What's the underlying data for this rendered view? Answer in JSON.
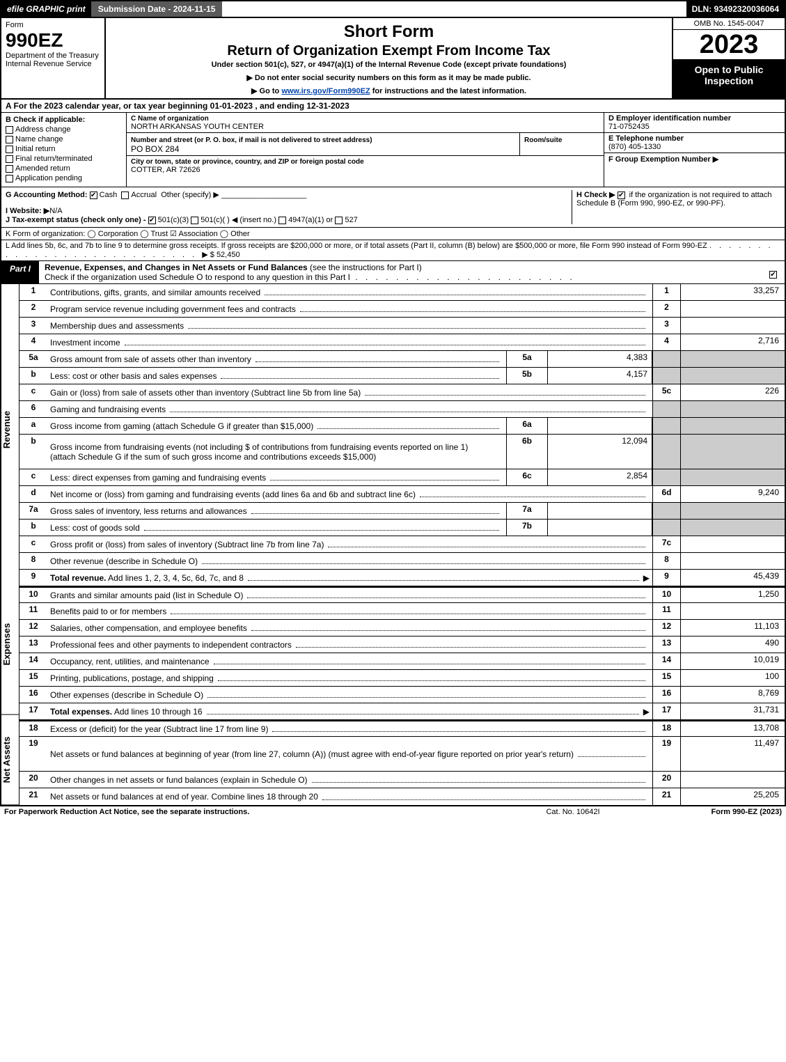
{
  "topbar": {
    "efile": "efile GRAPHIC print",
    "subdate": "Submission Date - 2024-11-15",
    "dln": "DLN: 93492320036064"
  },
  "header": {
    "form_word": "Form",
    "form_name": "990EZ",
    "dept": "Department of the Treasury",
    "irs": "Internal Revenue Service",
    "title1": "Short Form",
    "title2": "Return of Organization Exempt From Income Tax",
    "sub": "Under section 501(c), 527, or 4947(a)(1) of the Internal Revenue Code (except private foundations)",
    "sub2a": "▶ Do not enter social security numbers on this form as it may be made public.",
    "sub2b": "▶ Go to www.irs.gov/Form990EZ for instructions and the latest information.",
    "omb": "OMB No. 1545-0047",
    "year": "2023",
    "open": "Open to Public Inspection"
  },
  "section_a": "A  For the 2023 calendar year, or tax year beginning 01-01-2023 , and ending 12-31-2023",
  "section_b": {
    "label": "B  Check if applicable:",
    "opts": [
      "Address change",
      "Name change",
      "Initial return",
      "Final return/terminated",
      "Amended return",
      "Application pending"
    ]
  },
  "section_c": {
    "lbl": "C Name of organization",
    "org": "NORTH ARKANSAS YOUTH CENTER",
    "addr_lbl": "Number and street (or P. O. box, if mail is not delivered to street address)",
    "addr": "PO BOX 284",
    "room_lbl": "Room/suite",
    "city_lbl": "City or town, state or province, country, and ZIP or foreign postal code",
    "city": "COTTER, AR  72626"
  },
  "right_info": {
    "d_lbl": "D Employer identification number",
    "d_val": "71-0752435",
    "e_lbl": "E Telephone number",
    "e_val": "(870) 405-1330",
    "f_lbl": "F Group Exemption Number  ▶"
  },
  "meta": {
    "g": "G Accounting Method:",
    "g_cash": "Cash",
    "g_accrual": "Accrual",
    "g_other": "Other (specify) ▶",
    "i": "I Website: ▶",
    "i_val": "N/A",
    "j": "J Tax-exempt status (check only one) -",
    "j_501c3": "501(c)(3)",
    "j_501c": "501(c)(  ) ◀ (insert no.)",
    "j_4947": "4947(a)(1) or",
    "j_527": "527",
    "h": "H  Check ▶",
    "h2": "if the organization is not required to attach Schedule B (Form 990, 990-EZ, or 990-PF)."
  },
  "line_k": "K Form of organization:   ◯ Corporation   ◯ Trust   ☑ Association   ◯ Other",
  "line_l": {
    "text": "L Add lines 5b, 6c, and 7b to line 9 to determine gross receipts. If gross receipts are $200,000 or more, or if total assets (Part II, column (B) below) are $500,000 or more, file Form 990 instead of Form 990-EZ",
    "amount": "▶ $ 52,450"
  },
  "part1": {
    "label": "Part I",
    "title": "Revenue, Expenses, and Changes in Net Assets or Fund Balances",
    "title_sub": " (see the instructions for Part I)",
    "sub": "Check if the organization used Schedule O to respond to any question in this Part I"
  },
  "vlabels": {
    "rev": "Revenue",
    "exp": "Expenses",
    "net": "Net Assets"
  },
  "rows": [
    {
      "n": "1",
      "d": "Contributions, gifts, grants, and similar amounts received",
      "c": "1",
      "a": "33,257"
    },
    {
      "n": "2",
      "d": "Program service revenue including government fees and contracts",
      "c": "2",
      "a": ""
    },
    {
      "n": "3",
      "d": "Membership dues and assessments",
      "c": "3",
      "a": ""
    },
    {
      "n": "4",
      "d": "Investment income",
      "c": "4",
      "a": "2,716"
    },
    {
      "n": "5a",
      "d": "Gross amount from sale of assets other than inventory",
      "ib": "5a",
      "iv": "4,383",
      "shaded": true
    },
    {
      "n": "b",
      "d": "Less: cost or other basis and sales expenses",
      "ib": "5b",
      "iv": "4,157",
      "shaded": true
    },
    {
      "n": "c",
      "d": "Gain or (loss) from sale of assets other than inventory (Subtract line 5b from line 5a)",
      "c": "5c",
      "a": "226"
    },
    {
      "n": "6",
      "d": "Gaming and fundraising events",
      "shaded": true,
      "noamt": true
    },
    {
      "n": "a",
      "d": "Gross income from gaming (attach Schedule G if greater than $15,000)",
      "ib": "6a",
      "iv": "",
      "shaded": true
    },
    {
      "n": "b",
      "d": "Gross income from fundraising events (not including $                  of contributions from fundraising events reported on line 1) (attach Schedule G if the sum of such gross income and contributions exceeds $15,000)",
      "ib": "6b",
      "iv": "12,094",
      "shaded": true,
      "tall": true
    },
    {
      "n": "c",
      "d": "Less: direct expenses from gaming and fundraising events",
      "ib": "6c",
      "iv": "2,854",
      "shaded": true
    },
    {
      "n": "d",
      "d": "Net income or (loss) from gaming and fundraising events (add lines 6a and 6b and subtract line 6c)",
      "c": "6d",
      "a": "9,240"
    },
    {
      "n": "7a",
      "d": "Gross sales of inventory, less returns and allowances",
      "ib": "7a",
      "iv": "",
      "shaded": true
    },
    {
      "n": "b",
      "d": "Less: cost of goods sold",
      "ib": "7b",
      "iv": "",
      "shaded": true
    },
    {
      "n": "c",
      "d": "Gross profit or (loss) from sales of inventory (Subtract line 7b from line 7a)",
      "c": "7c",
      "a": ""
    },
    {
      "n": "8",
      "d": "Other revenue (describe in Schedule O)",
      "c": "8",
      "a": ""
    },
    {
      "n": "9",
      "d": "Total revenue. Add lines 1, 2, 3, 4, 5c, 6d, 7c, and 8",
      "c": "9",
      "a": "45,439",
      "bold": true,
      "arrow": true
    },
    {
      "n": "10",
      "d": "Grants and similar amounts paid (list in Schedule O)",
      "c": "10",
      "a": "1,250",
      "break": true
    },
    {
      "n": "11",
      "d": "Benefits paid to or for members",
      "c": "11",
      "a": ""
    },
    {
      "n": "12",
      "d": "Salaries, other compensation, and employee benefits",
      "c": "12",
      "a": "11,103"
    },
    {
      "n": "13",
      "d": "Professional fees and other payments to independent contractors",
      "c": "13",
      "a": "490"
    },
    {
      "n": "14",
      "d": "Occupancy, rent, utilities, and maintenance",
      "c": "14",
      "a": "10,019"
    },
    {
      "n": "15",
      "d": "Printing, publications, postage, and shipping",
      "c": "15",
      "a": "100"
    },
    {
      "n": "16",
      "d": "Other expenses (describe in Schedule O)",
      "c": "16",
      "a": "8,769"
    },
    {
      "n": "17",
      "d": "Total expenses. Add lines 10 through 16",
      "c": "17",
      "a": "31,731",
      "bold": true,
      "arrow": true
    },
    {
      "n": "18",
      "d": "Excess or (deficit) for the year (Subtract line 17 from line 9)",
      "c": "18",
      "a": "13,708",
      "break": true
    },
    {
      "n": "19",
      "d": "Net assets or fund balances at beginning of year (from line 27, column (A)) (must agree with end-of-year figure reported on prior year's return)",
      "c": "19",
      "a": "11,497",
      "tall": true
    },
    {
      "n": "20",
      "d": "Other changes in net assets or fund balances (explain in Schedule O)",
      "c": "20",
      "a": ""
    },
    {
      "n": "21",
      "d": "Net assets or fund balances at end of year. Combine lines 18 through 20",
      "c": "21",
      "a": "25,205"
    }
  ],
  "footer": {
    "left": "For Paperwork Reduction Act Notice, see the separate instructions.",
    "mid": "Cat. No. 10642I",
    "right": "Form 990-EZ (2023)"
  }
}
